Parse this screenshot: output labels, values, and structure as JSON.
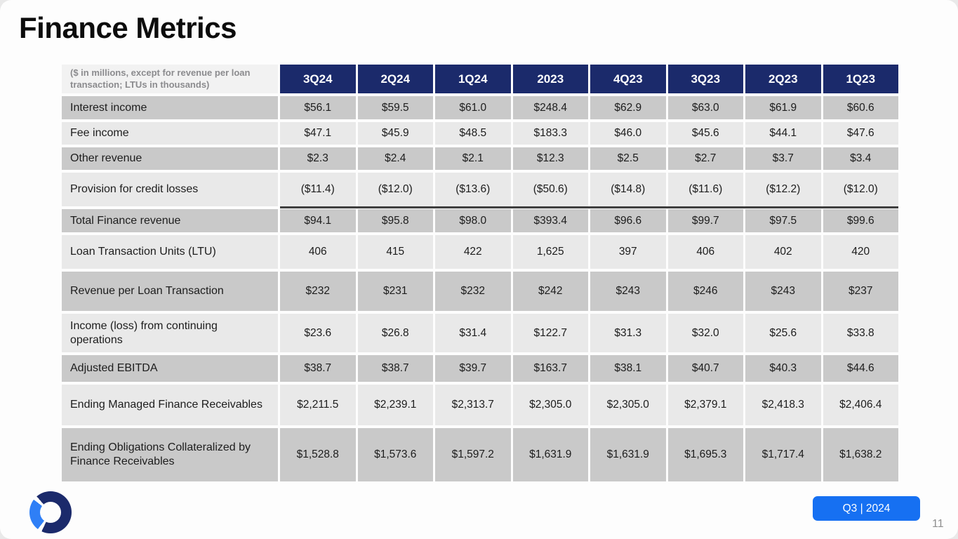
{
  "slide": {
    "title": "Finance Metrics",
    "page_number": "11",
    "badge": {
      "label": "Q3 | 2024"
    }
  },
  "colors": {
    "header_navy": "#1b2a6b",
    "row_gray": "#c9c9c9",
    "row_light": "#e9e9e9",
    "badge_blue": "#1670f2",
    "logo_blue": "#2f7ff6",
    "sum_line": "#3f3f3f"
  },
  "table": {
    "note": "($ in millions, except for revenue per loan transaction; LTUs in thousands)",
    "columns": [
      "3Q24",
      "2Q24",
      "1Q24",
      "2023",
      "4Q23",
      "3Q23",
      "2Q23",
      "1Q23"
    ],
    "rows": [
      {
        "label": "Interest income",
        "values": [
          "$56.1",
          "$59.5",
          "$61.0",
          "$248.4",
          "$62.9",
          "$63.0",
          "$61.9",
          "$60.6"
        ]
      },
      {
        "label": "Fee income",
        "values": [
          "$47.1",
          "$45.9",
          "$48.5",
          "$183.3",
          "$46.0",
          "$45.6",
          "$44.1",
          "$47.6"
        ]
      },
      {
        "label": "Other revenue",
        "values": [
          "$2.3",
          "$2.4",
          "$2.1",
          "$12.3",
          "$2.5",
          "$2.7",
          "$3.7",
          "$3.4"
        ]
      },
      {
        "label": "Provision for credit losses",
        "values": [
          "($11.4)",
          "($12.0)",
          "($13.6)",
          "($50.6)",
          "($14.8)",
          "($11.6)",
          "($12.2)",
          "($12.0)"
        ]
      },
      {
        "label": "Total Finance revenue",
        "values": [
          "$94.1",
          "$95.8",
          "$98.0",
          "$393.4",
          "$96.6",
          "$99.7",
          "$97.5",
          "$99.6"
        ],
        "sum_line_above": true
      },
      {
        "label": "Loan Transaction Units (LTU)",
        "values": [
          "406",
          "415",
          "422",
          "1,625",
          "397",
          "406",
          "402",
          "420"
        ]
      },
      {
        "label": "Revenue per Loan Transaction",
        "values": [
          "$232",
          "$231",
          "$232",
          "$242",
          "$243",
          "$246",
          "$243",
          "$237"
        ]
      },
      {
        "label": "Income (loss) from continuing operations",
        "values": [
          "$23.6",
          "$26.8",
          "$31.4",
          "$122.7",
          "$31.3",
          "$32.0",
          "$25.6",
          "$33.8"
        ]
      },
      {
        "label": "Adjusted EBITDA",
        "values": [
          "$38.7",
          "$38.7",
          "$39.7",
          "$163.7",
          "$38.1",
          "$40.7",
          "$40.3",
          "$44.6"
        ]
      },
      {
        "label": "Ending Managed Finance Receivables",
        "values": [
          "$2,211.5",
          "$2,239.1",
          "$2,313.7",
          "$2,305.0",
          "$2,305.0",
          "$2,379.1",
          "$2,418.3",
          "$2,406.4"
        ]
      },
      {
        "label": "Ending Obligations Collateralized by Finance Receivables",
        "values": [
          "$1,528.8",
          "$1,573.6",
          "$1,597.2",
          "$1,631.9",
          "$1,631.9",
          "$1,695.3",
          "$1,717.4",
          "$1,638.2"
        ]
      }
    ]
  }
}
